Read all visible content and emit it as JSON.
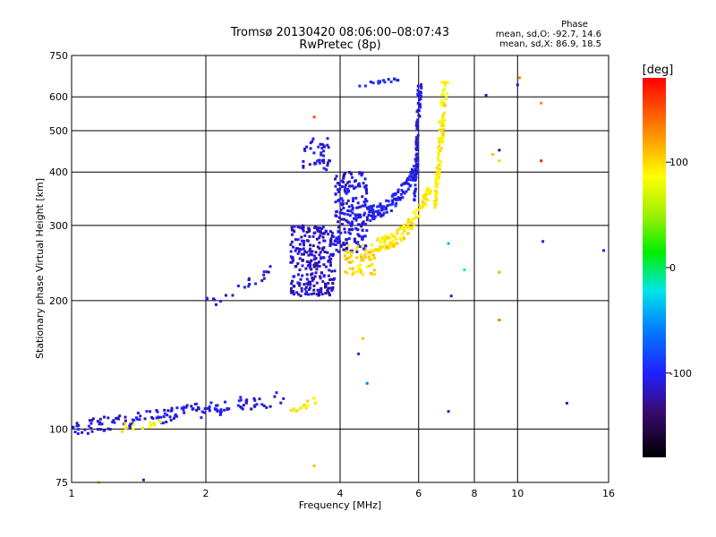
{
  "chart_data": {
    "type": "scatter",
    "title": "Tromsø 20130420 08:06:00–08:07:43",
    "subtitle": "RwPretec (8p)",
    "xlabel": "Frequency [MHz]",
    "ylabel": "Stationary phase Virtual Height [km]",
    "x_scale": "log",
    "y_scale": "log",
    "xlim": [
      1,
      16
    ],
    "ylim": [
      75,
      750
    ],
    "x_ticks": [
      1,
      2,
      4,
      6,
      8,
      10,
      16
    ],
    "y_ticks": [
      75,
      100,
      200,
      300,
      400,
      500,
      600,
      750
    ],
    "grid": true,
    "stats": {
      "title": "Phase",
      "line_o": "mean, sd,O: -92.7, 14.6",
      "line_x": "mean, sd,X:  86.9, 18.5"
    },
    "colorbar": {
      "label": "[deg]",
      "range": [
        -180,
        180
      ],
      "ticks": [
        100,
        0,
        -100
      ]
    },
    "clusters": [
      {
        "name": "E-layer trace",
        "x": [
          1.0,
          3.0
        ],
        "y": [
          100,
          118
        ],
        "shape": "line",
        "phase": -110,
        "n": 150,
        "spread": 0.04
      },
      {
        "name": "E-layer X-mode",
        "x": [
          1.25,
          1.6
        ],
        "y": [
          100,
          104
        ],
        "shape": "line",
        "phase": 90,
        "n": 14,
        "spread": 0.02
      },
      {
        "name": "Es X-mode",
        "x": [
          3.1,
          3.6
        ],
        "y": [
          110,
          118
        ],
        "shape": "line",
        "phase": 90,
        "n": 16,
        "spread": 0.02
      },
      {
        "name": "Es patch",
        "x": [
          2.0,
          2.8
        ],
        "y": [
          195,
          232
        ],
        "shape": "line",
        "phase": -110,
        "n": 22,
        "spread": 0.04
      },
      {
        "name": "F1 O-mode blob",
        "x": [
          3.1,
          3.9
        ],
        "y": [
          205,
          300
        ],
        "shape": "box",
        "phase": -115,
        "n": 260
      },
      {
        "name": "F1 echo",
        "x": [
          3.3,
          3.8
        ],
        "y": [
          400,
          480
        ],
        "shape": "box",
        "phase": -110,
        "n": 40
      },
      {
        "name": "F2 O-mode cusp",
        "x": [
          3.9,
          4.6
        ],
        "y": [
          260,
          400
        ],
        "shape": "box",
        "phase": -110,
        "n": 200
      },
      {
        "name": "F2 O-mode trace",
        "x": [
          4.6,
          6.0
        ],
        "y": [
          320,
          420
        ],
        "shape": "curve",
        "phase": -105,
        "n": 130
      },
      {
        "name": "F2 O-mode cusp high",
        "x": [
          5.8,
          6.1
        ],
        "y": [
          340,
          650
        ],
        "shape": "vline",
        "phase": -110,
        "n": 70
      },
      {
        "name": "F2 X-mode low",
        "x": [
          4.1,
          4.8
        ],
        "y": [
          230,
          270
        ],
        "shape": "box",
        "phase": 100,
        "n": 60
      },
      {
        "name": "F2 X-mode trace",
        "x": [
          4.8,
          6.4
        ],
        "y": [
          270,
          370
        ],
        "shape": "curve",
        "phase": 95,
        "n": 120
      },
      {
        "name": "F2 X-mode cusp",
        "x": [
          6.4,
          7.0
        ],
        "y": [
          330,
          650
        ],
        "shape": "vline",
        "phase": 90,
        "n": 110
      },
      {
        "name": "Multi-hop echo",
        "x": [
          4.4,
          5.4
        ],
        "y": [
          638,
          660
        ],
        "shape": "line",
        "phase": -100,
        "n": 18,
        "spread": 0.01
      }
    ],
    "scattered_points": [
      {
        "x": 3.5,
        "y": 538,
        "phase": 150
      },
      {
        "x": 3.5,
        "y": 82,
        "phase": 110
      },
      {
        "x": 4.5,
        "y": 163,
        "phase": 110
      },
      {
        "x": 4.4,
        "y": 150,
        "phase": -95
      },
      {
        "x": 4.6,
        "y": 128,
        "phase": -60
      },
      {
        "x": 7.0,
        "y": 110,
        "phase": -110
      },
      {
        "x": 7.0,
        "y": 272,
        "phase": -40
      },
      {
        "x": 7.1,
        "y": 205,
        "phase": -110
      },
      {
        "x": 7.6,
        "y": 236,
        "phase": -20
      },
      {
        "x": 8.5,
        "y": 605,
        "phase": -110
      },
      {
        "x": 8.8,
        "y": 440,
        "phase": 110
      },
      {
        "x": 9.1,
        "y": 450,
        "phase": -140
      },
      {
        "x": 9.1,
        "y": 425,
        "phase": 60
      },
      {
        "x": 9.1,
        "y": 233,
        "phase": 120
      },
      {
        "x": 9.1,
        "y": 180,
        "phase": 140
      },
      {
        "x": 10.0,
        "y": 640,
        "phase": -110
      },
      {
        "x": 10.1,
        "y": 665,
        "phase": 130
      },
      {
        "x": 11.3,
        "y": 580,
        "phase": 130
      },
      {
        "x": 11.3,
        "y": 425,
        "phase": 170
      },
      {
        "x": 11.4,
        "y": 275,
        "phase": -110
      },
      {
        "x": 12.9,
        "y": 115,
        "phase": -110
      },
      {
        "x": 15.6,
        "y": 262,
        "phase": -100
      },
      {
        "x": 1.45,
        "y": 76,
        "phase": -110
      },
      {
        "x": 1.15,
        "y": 75,
        "phase": 60
      }
    ]
  }
}
